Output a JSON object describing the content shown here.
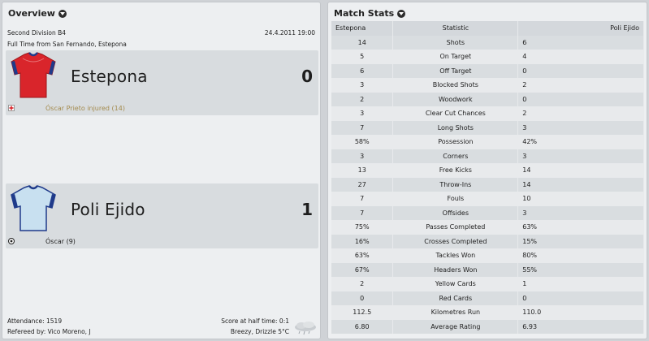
{
  "overview": {
    "title": "Overview",
    "competition": "Second Division B4",
    "date_time": "24.4.2011 19:00",
    "venue": "Full Time from San Fernando, Estepona",
    "home": {
      "name": "Estepona",
      "score": "0",
      "kit_colors": {
        "shirt": "#d9252b",
        "trim": "#1f3a8a"
      },
      "event": {
        "icon": "injury-icon",
        "text": "Óscar Prieto injured (14)",
        "color": "#a48b4e"
      }
    },
    "away": {
      "name": "Poli Ejido",
      "score": "1",
      "kit_colors": {
        "shirt": "#c8e0f0",
        "trim": "#1f3a8a"
      },
      "event": {
        "icon": "goal-ball-icon",
        "text": "Óscar (9)",
        "color": "#222222"
      }
    },
    "attendance": "Attendance: 1519",
    "referee": "Refereed by: Vico Moreno, J",
    "half_time": "Score at half time: 0:1",
    "weather": "Breezy, Drizzle 5°C",
    "weather_icon": "drizzle-cloud-icon"
  },
  "match_stats": {
    "title": "Match Stats",
    "headers": {
      "home": "Estepona",
      "stat": "Statistic",
      "away": "Poli Ejido"
    },
    "rows": [
      {
        "home": "14",
        "stat": "Shots",
        "away": "6"
      },
      {
        "home": "5",
        "stat": "On Target",
        "away": "4"
      },
      {
        "home": "6",
        "stat": "Off Target",
        "away": "0"
      },
      {
        "home": "3",
        "stat": "Blocked Shots",
        "away": "2"
      },
      {
        "home": "2",
        "stat": "Woodwork",
        "away": "0"
      },
      {
        "home": "3",
        "stat": "Clear Cut Chances",
        "away": "2"
      },
      {
        "home": "7",
        "stat": "Long Shots",
        "away": "3"
      },
      {
        "home": "58%",
        "stat": "Possession",
        "away": "42%"
      },
      {
        "home": "3",
        "stat": "Corners",
        "away": "3"
      },
      {
        "home": "13",
        "stat": "Free Kicks",
        "away": "14"
      },
      {
        "home": "27",
        "stat": "Throw-Ins",
        "away": "14"
      },
      {
        "home": "7",
        "stat": "Fouls",
        "away": "10"
      },
      {
        "home": "7",
        "stat": "Offsides",
        "away": "3"
      },
      {
        "home": "75%",
        "stat": "Passes Completed",
        "away": "63%"
      },
      {
        "home": "16%",
        "stat": "Crosses Completed",
        "away": "15%"
      },
      {
        "home": "63%",
        "stat": "Tackles Won",
        "away": "80%"
      },
      {
        "home": "67%",
        "stat": "Headers Won",
        "away": "55%"
      },
      {
        "home": "2",
        "stat": "Yellow Cards",
        "away": "1"
      },
      {
        "home": "0",
        "stat": "Red Cards",
        "away": "0"
      },
      {
        "home": "112.5",
        "stat": "Kilometres Run",
        "away": "110.0"
      },
      {
        "home": "6.80",
        "stat": "Average Rating",
        "away": "6.93"
      }
    ]
  }
}
